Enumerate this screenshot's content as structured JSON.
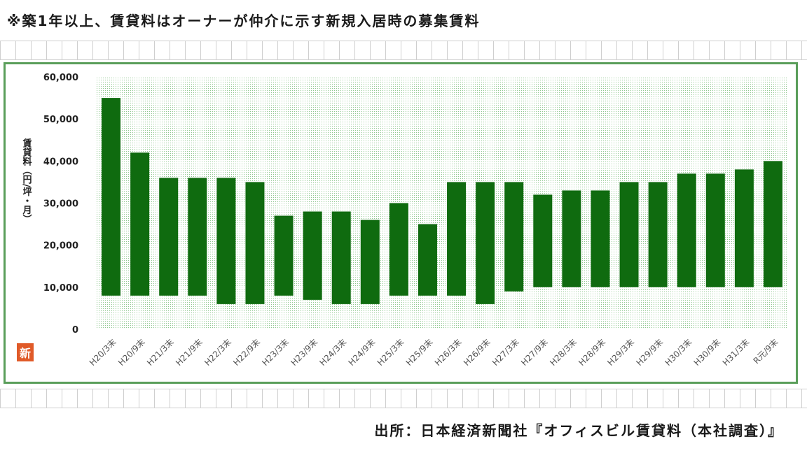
{
  "note": "※築1年以上、賃貸料はオーナーが仲介に示す新規入居時の募集賃料",
  "source": "出所：日本経済新聞社『オフィスビル賃貸料（本社調査）』",
  "logo_text": "新",
  "colors": {
    "bar": "#0f6b0f",
    "plot_dots": "#8fc78f",
    "frame": "#5a9e5a"
  },
  "chart_data": {
    "type": "bar",
    "subtype": "floating-range",
    "title": "",
    "xlabel": "",
    "ylabel": "賃貸料（円/坪・月）",
    "ylim": [
      0,
      60000
    ],
    "yticks": [
      0,
      10000,
      20000,
      30000,
      40000,
      50000,
      60000
    ],
    "ytick_labels": [
      "0",
      "10,000",
      "20,000",
      "30,000",
      "40,000",
      "50,000",
      "60,000"
    ],
    "grid": true,
    "legend": "none",
    "categories": [
      "H20/3末",
      "H20/9末",
      "H21/3末",
      "H21/9末",
      "H22/3末",
      "H22/9末",
      "H23/3末",
      "H23/9末",
      "H24/3末",
      "H24/9末",
      "H25/3末",
      "H25/9末",
      "H26/3末",
      "H26/9末",
      "H27/3末",
      "H27/9末",
      "H28/3末",
      "H28/9末",
      "H29/3末",
      "H29/9末",
      "H30/3末",
      "H30/9末",
      "H31/3末",
      "R元/9末"
    ],
    "high": [
      55000,
      42000,
      36000,
      36000,
      36000,
      35000,
      27000,
      28000,
      28000,
      26000,
      30000,
      25000,
      35000,
      35000,
      35000,
      32000,
      33000,
      33000,
      35000,
      35000,
      37000,
      37000,
      38000,
      40000
    ],
    "low": [
      8000,
      8000,
      8000,
      8000,
      6000,
      6000,
      8000,
      7000,
      6000,
      6000,
      8000,
      8000,
      8000,
      6000,
      9000,
      10000,
      10000,
      10000,
      10000,
      10000,
      10000,
      10000,
      10000,
      10000
    ]
  }
}
